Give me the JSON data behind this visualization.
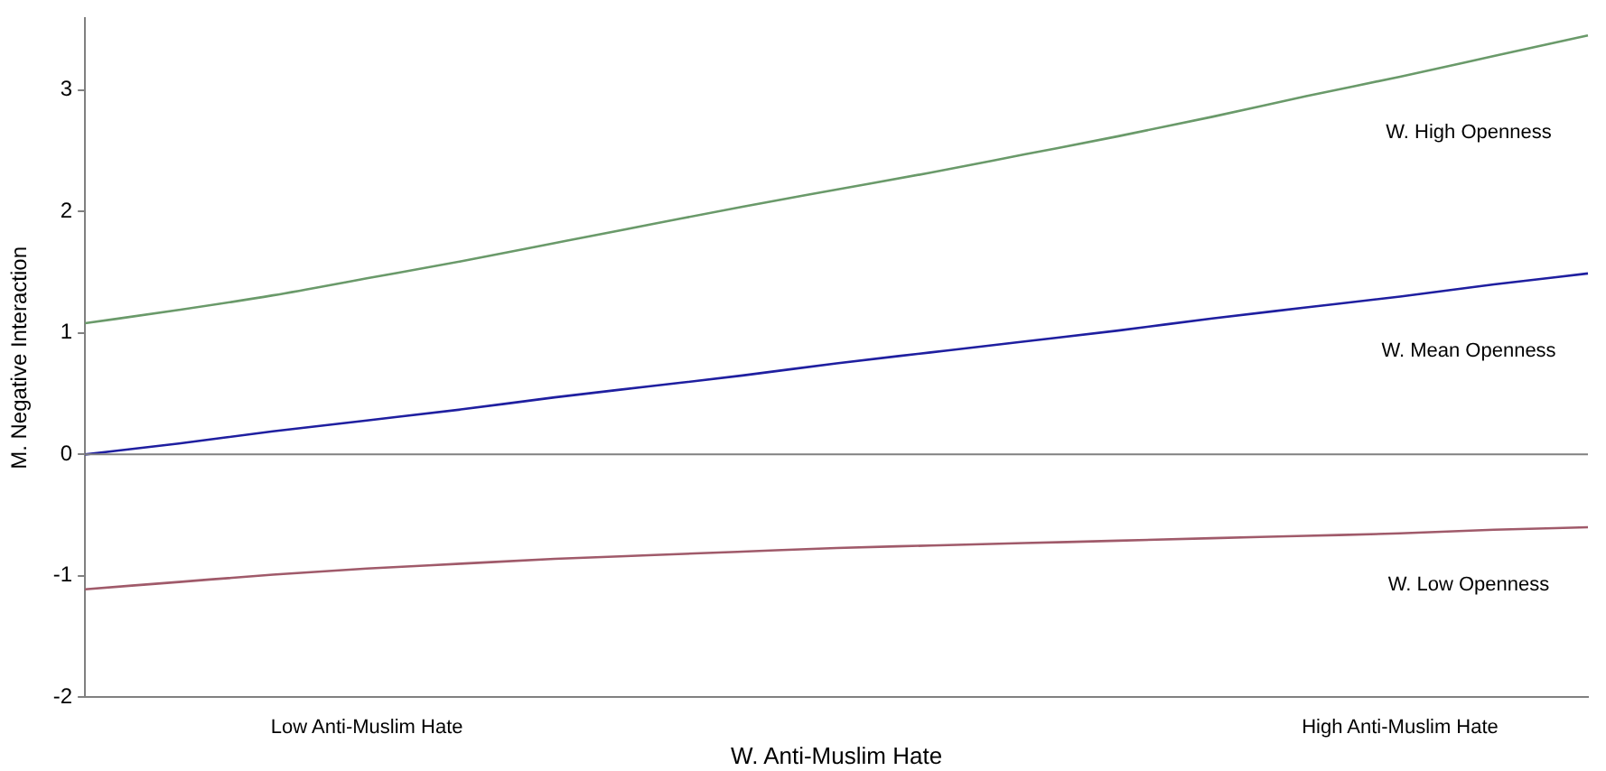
{
  "chart_data": {
    "type": "line",
    "xlabel": "W. Anti-Muslim Hate",
    "ylabel": "M. Negative Interaction",
    "categories": [
      null,
      null,
      null,
      "Low Anti-Muslim Hate",
      null,
      null,
      null,
      null,
      null,
      null,
      null,
      null,
      null,
      null,
      "High Anti-Muslim Hate",
      null,
      null
    ],
    "ylim": [
      -2,
      3.59
    ],
    "yticks": [
      -2,
      -1,
      0,
      1,
      2,
      3
    ],
    "grid": false,
    "legend": false,
    "marker": "none",
    "line_style": "solid",
    "ref_lines": [
      {
        "axis": "y",
        "value": 0,
        "color": "#808080"
      }
    ],
    "series": [
      {
        "name": "W. High Openness",
        "color": "#6a9a6a",
        "values": [
          1.08,
          1.19,
          1.31,
          1.45,
          1.59,
          1.74,
          1.89,
          2.04,
          2.18,
          2.32,
          2.47,
          2.62,
          2.78,
          2.95,
          3.11,
          3.28,
          3.45
        ]
      },
      {
        "name": "W. Mean Openness",
        "color": "#1f1fa0",
        "values": [
          0,
          0.09,
          0.19,
          0.28,
          0.37,
          0.47,
          0.56,
          0.65,
          0.75,
          0.84,
          0.93,
          1.02,
          1.12,
          1.21,
          1.3,
          1.4,
          1.49
        ]
      },
      {
        "name": "W. Low Openness",
        "color": "#a05a6a",
        "values": [
          -1.11,
          -1.05,
          -0.99,
          -0.94,
          -0.9,
          -0.86,
          -0.83,
          -0.8,
          -0.77,
          -0.75,
          -0.73,
          -0.71,
          -0.69,
          -0.67,
          -0.65,
          -0.62,
          -0.6
        ]
      }
    ]
  }
}
